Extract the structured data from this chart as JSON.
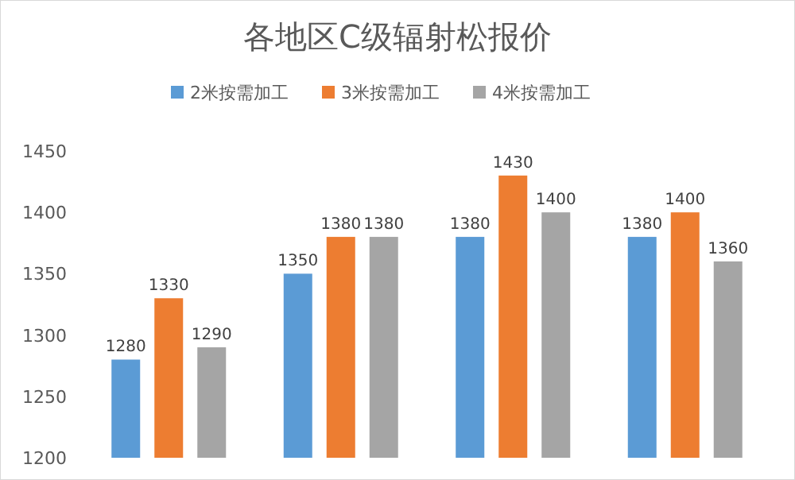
{
  "chart_data": {
    "type": "bar",
    "title": "各地区C级辐射松报价",
    "categories": [
      null,
      null,
      null,
      null
    ],
    "series": [
      {
        "name": "2米按需加工",
        "color": "#5b9bd5",
        "values": [
          1280,
          1350,
          1380,
          1380
        ]
      },
      {
        "name": "3米按需加工",
        "color": "#ed7d31",
        "values": [
          1330,
          1380,
          1430,
          1400
        ]
      },
      {
        "name": "4米按需加工",
        "color": "#a5a5a5",
        "values": [
          1290,
          1380,
          1400,
          1360
        ]
      }
    ],
    "ylim": [
      1200,
      1450
    ],
    "yticks": [
      1200,
      1250,
      1300,
      1350,
      1400,
      1450
    ],
    "data_labels": true,
    "legend": "top",
    "grid": false
  }
}
